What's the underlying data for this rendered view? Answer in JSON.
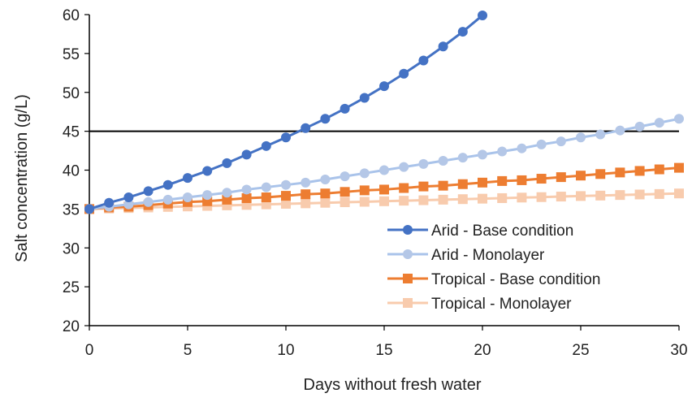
{
  "chart_data": {
    "type": "line",
    "title": "",
    "xlabel": "Days without fresh water",
    "ylabel": "Salt concentration (g/L)",
    "xlim": [
      0,
      30
    ],
    "ylim": [
      20,
      60
    ],
    "xticks": [
      0,
      5,
      10,
      15,
      20,
      25,
      30
    ],
    "yticks": [
      20,
      25,
      30,
      35,
      40,
      45,
      50,
      55,
      60
    ],
    "grid": false,
    "legend_position": "bottom-right",
    "reference_line": {
      "y": 45,
      "color": "#000000"
    },
    "series": [
      {
        "name": "Arid - Base condition",
        "marker": "circle",
        "color": "#4472C4",
        "marker_fill": "#4472C4",
        "x": [
          0,
          1,
          2,
          3,
          4,
          5,
          6,
          7,
          8,
          9,
          10,
          11,
          12,
          13,
          14,
          15,
          16,
          17,
          18,
          19,
          20
        ],
        "y": [
          35.0,
          35.8,
          36.5,
          37.3,
          38.1,
          39.0,
          39.9,
          40.9,
          42.0,
          43.1,
          44.2,
          45.4,
          46.6,
          47.9,
          49.3,
          50.8,
          52.4,
          54.1,
          55.9,
          57.8,
          59.9
        ]
      },
      {
        "name": "Arid - Monolayer",
        "marker": "circle",
        "color": "#A9C3EA",
        "marker_fill": "#B4C7E7",
        "x": [
          0,
          1,
          2,
          3,
          4,
          5,
          6,
          7,
          8,
          9,
          10,
          11,
          12,
          13,
          14,
          15,
          16,
          17,
          18,
          19,
          20,
          21,
          22,
          23,
          24,
          25,
          26,
          27,
          28,
          29,
          30
        ],
        "y": [
          35.0,
          35.3,
          35.6,
          35.9,
          36.2,
          36.5,
          36.8,
          37.1,
          37.5,
          37.8,
          38.1,
          38.4,
          38.8,
          39.2,
          39.6,
          40.0,
          40.4,
          40.8,
          41.2,
          41.6,
          42.0,
          42.4,
          42.8,
          43.3,
          43.7,
          44.2,
          44.6,
          45.1,
          45.6,
          46.1,
          46.6
        ]
      },
      {
        "name": "Tropical - Base condition",
        "marker": "square",
        "color": "#ED7D31",
        "marker_fill": "#ED7D31",
        "x": [
          0,
          1,
          2,
          3,
          4,
          5,
          6,
          7,
          8,
          9,
          10,
          11,
          12,
          13,
          14,
          15,
          16,
          17,
          18,
          19,
          20,
          21,
          22,
          23,
          24,
          25,
          26,
          27,
          28,
          29,
          30
        ],
        "y": [
          35.0,
          35.2,
          35.3,
          35.5,
          35.7,
          35.9,
          36.0,
          36.2,
          36.4,
          36.5,
          36.7,
          36.9,
          37.0,
          37.2,
          37.4,
          37.5,
          37.7,
          37.9,
          38.0,
          38.2,
          38.4,
          38.6,
          38.7,
          38.9,
          39.1,
          39.3,
          39.5,
          39.7,
          39.9,
          40.1,
          40.3
        ]
      },
      {
        "name": "Tropical - Monolayer",
        "marker": "square",
        "color": "#F8CBAD",
        "marker_fill": "#F8CBAD",
        "x": [
          0,
          1,
          2,
          3,
          4,
          5,
          6,
          7,
          8,
          9,
          10,
          11,
          12,
          13,
          14,
          15,
          16,
          17,
          18,
          19,
          20,
          21,
          22,
          23,
          24,
          25,
          26,
          27,
          28,
          29,
          30
        ],
        "y": [
          35.0,
          35.07,
          35.13,
          35.2,
          35.27,
          35.33,
          35.4,
          35.47,
          35.53,
          35.6,
          35.67,
          35.73,
          35.8,
          35.87,
          35.93,
          36.0,
          36.07,
          36.13,
          36.2,
          36.27,
          36.33,
          36.4,
          36.47,
          36.53,
          36.6,
          36.67,
          36.73,
          36.8,
          36.87,
          36.93,
          37.0
        ]
      }
    ]
  }
}
